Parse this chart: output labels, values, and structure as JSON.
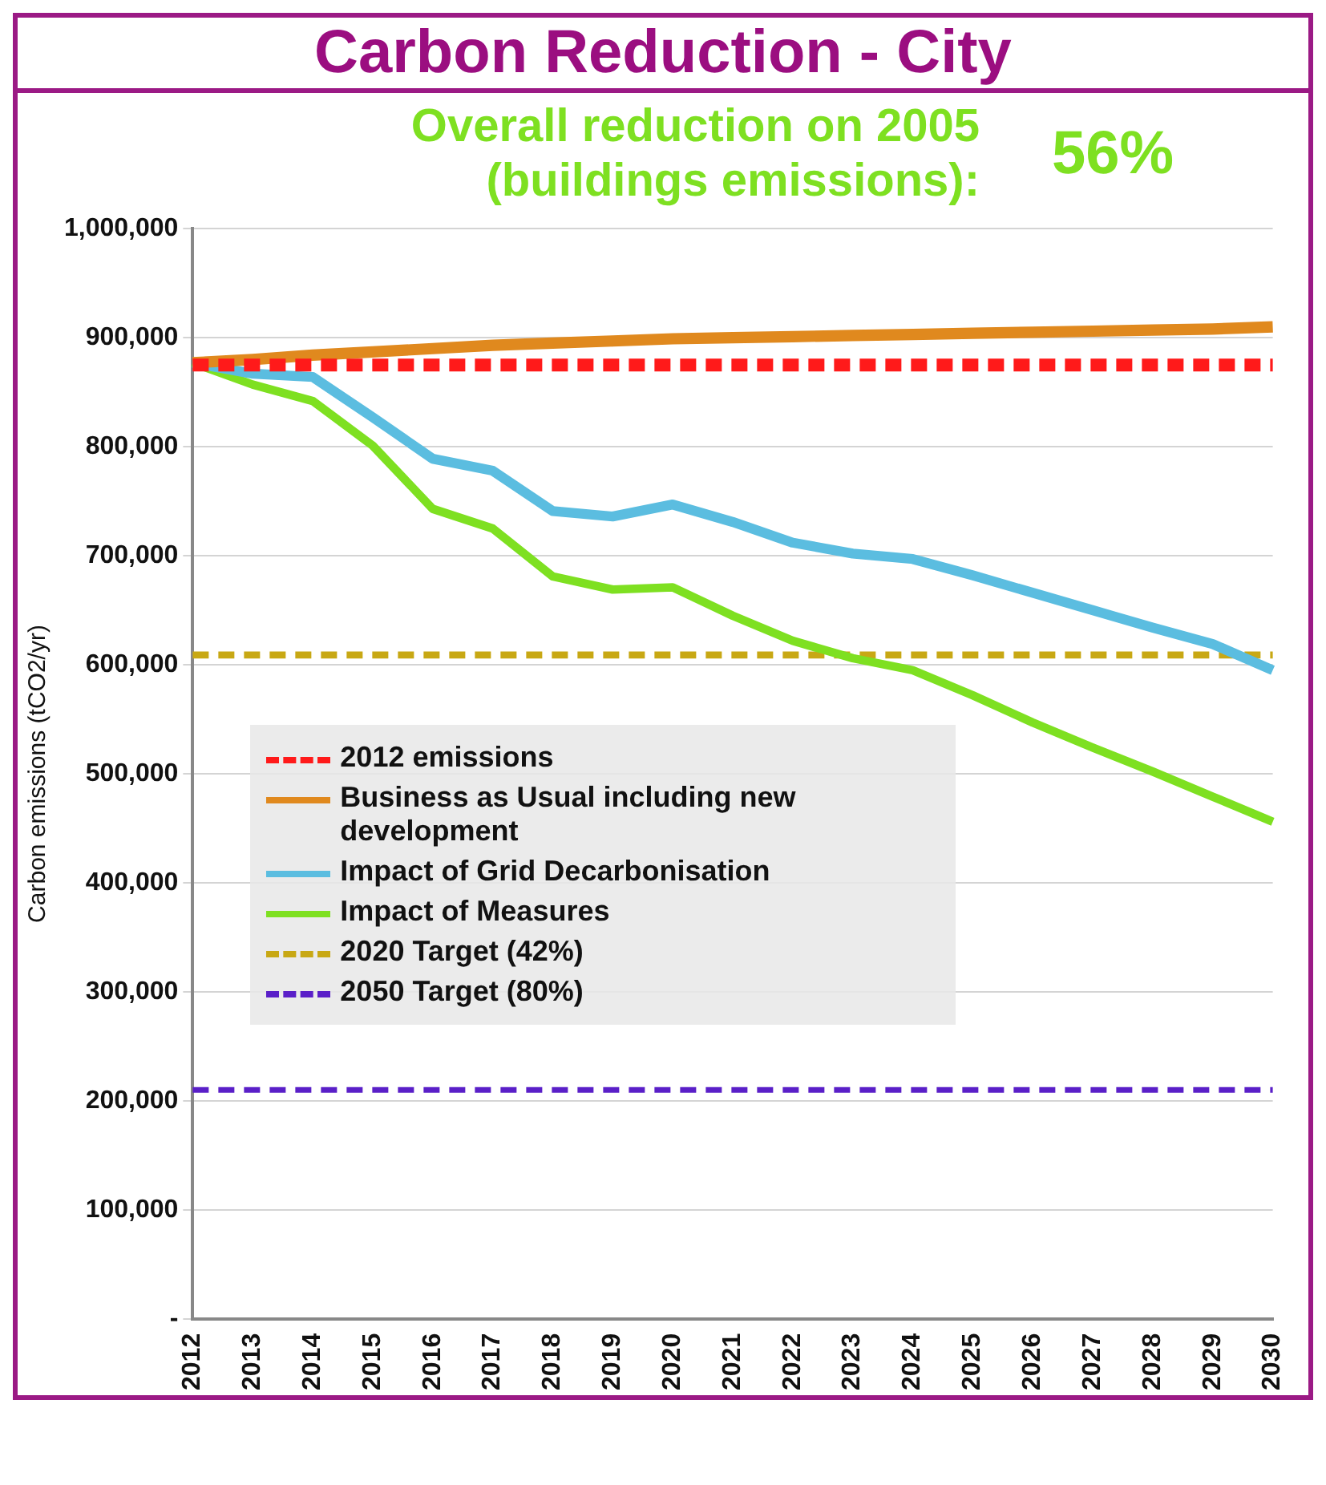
{
  "chart_data": {
    "type": "line",
    "title": "Carbon Reduction - City",
    "subtitle": "Overall reduction on 2005 (buildings emissions):",
    "annotations": [
      "56%"
    ],
    "ylabel": "Carbon emissions (tCO2/yr)",
    "categories": [
      "2012",
      "2013",
      "2014",
      "2015",
      "2016",
      "2017",
      "2018",
      "2019",
      "2020",
      "2021",
      "2022",
      "2023",
      "2024",
      "2025",
      "2026",
      "2027",
      "2028",
      "2029",
      "2030"
    ],
    "series": [
      {
        "name": "2012 emissions",
        "color": "#ff1a1a",
        "line_style": "dashed",
        "values": [
          875000,
          875000,
          875000,
          875000,
          875000,
          875000,
          875000,
          875000,
          875000,
          875000,
          875000,
          875000,
          875000,
          875000,
          875000,
          875000,
          875000,
          875000,
          875000
        ]
      },
      {
        "name": "Business as Usual including new development",
        "color": "#e0891e",
        "line_style": "solid",
        "values": [
          877000,
          880000,
          884000,
          887000,
          890000,
          893000,
          895000,
          897000,
          899000,
          900000,
          901000,
          902000,
          903000,
          904000,
          905000,
          906000,
          907000,
          908000,
          910000
        ]
      },
      {
        "name": "Impact of Grid Decarbonisation",
        "color": "#5bbde0",
        "line_style": "solid",
        "values": [
          877000,
          867000,
          864000,
          827000,
          789000,
          778000,
          741000,
          736000,
          747000,
          731000,
          712000,
          702000,
          697000,
          682000,
          666000,
          650000,
          634000,
          619000,
          595000
        ]
      },
      {
        "name": "Impact of Measures",
        "color": "#7ee021",
        "line_style": "solid",
        "values": [
          877000,
          857000,
          842000,
          801000,
          743000,
          725000,
          681000,
          669000,
          671000,
          645000,
          622000,
          606000,
          595000,
          572000,
          547000,
          524000,
          502000,
          479000,
          456000
        ]
      },
      {
        "name": "2020 Target (42%)",
        "color": "#c8a814",
        "line_style": "dashed",
        "values": [
          609000,
          609000,
          609000,
          609000,
          609000,
          609000,
          609000,
          609000,
          609000,
          609000,
          609000,
          609000,
          609000,
          609000,
          609000,
          609000,
          609000,
          609000,
          609000
        ]
      },
      {
        "name": "2050 Target (80%)",
        "color": "#5a1fc8",
        "line_style": "dashed",
        "values": [
          210000,
          210000,
          210000,
          210000,
          210000,
          210000,
          210000,
          210000,
          210000,
          210000,
          210000,
          210000,
          210000,
          210000,
          210000,
          210000,
          210000,
          210000,
          210000
        ]
      }
    ],
    "ylim": [
      0,
      1000000
    ],
    "yticks": [
      {
        "value": 0,
        "label": "-"
      },
      {
        "value": 100000,
        "label": "100,000"
      },
      {
        "value": 200000,
        "label": "200,000"
      },
      {
        "value": 300000,
        "label": "300,000"
      },
      {
        "value": 400000,
        "label": "400,000"
      },
      {
        "value": 500000,
        "label": "500,000"
      },
      {
        "value": 600000,
        "label": "600,000"
      },
      {
        "value": 700000,
        "label": "700,000"
      },
      {
        "value": 800000,
        "label": "800,000"
      },
      {
        "value": 900000,
        "label": "900,000"
      },
      {
        "value": 1000000,
        "label": "1,000,000"
      }
    ],
    "grid": "y",
    "legend": "left",
    "marker": "none"
  }
}
